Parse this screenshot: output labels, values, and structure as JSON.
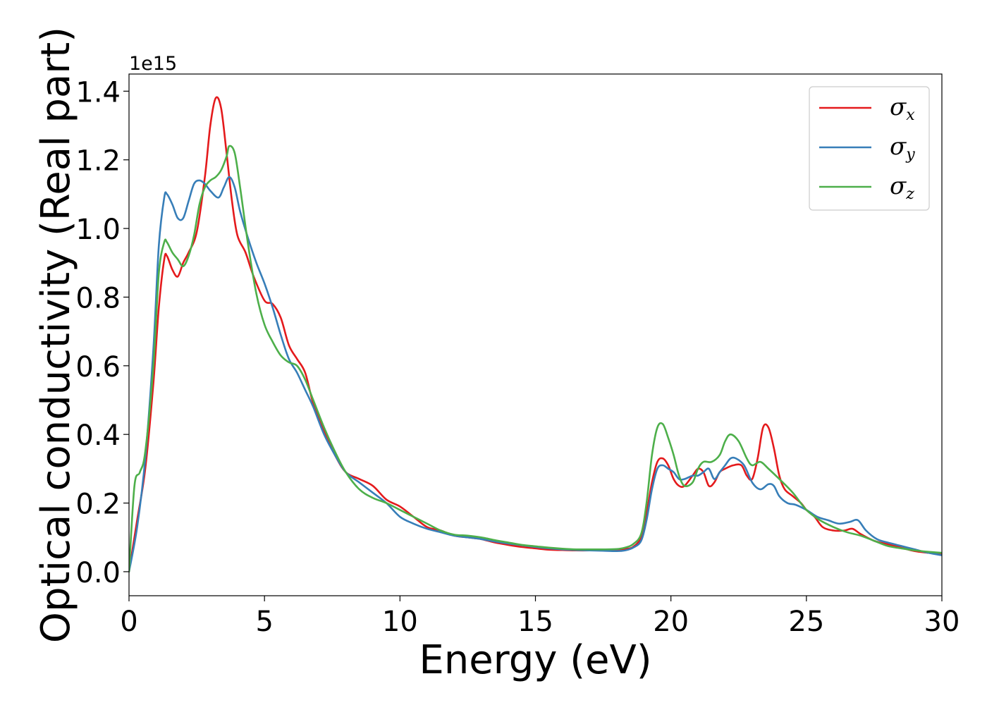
{
  "chart_data": {
    "type": "line",
    "title": "",
    "xlabel": "Energy (eV)",
    "ylabel": "Optical conductivity (Real part)",
    "y_offset_label": "1e15",
    "xlim": [
      0,
      30
    ],
    "ylim": [
      -0.07,
      1.45
    ],
    "x_ticks": [
      0,
      5,
      10,
      15,
      20,
      25,
      30
    ],
    "y_ticks": [
      0.0,
      0.2,
      0.4,
      0.6,
      0.8,
      1.0,
      1.2,
      1.4
    ],
    "x_tick_labels": [
      "0",
      "5",
      "10",
      "15",
      "20",
      "25",
      "30"
    ],
    "y_tick_labels": [
      "0.0",
      "0.2",
      "0.4",
      "0.6",
      "0.8",
      "1.0",
      "1.2",
      "1.4"
    ],
    "grid": false,
    "legend_position": "top-right",
    "series": [
      {
        "name": "σx",
        "legend_base": "σ",
        "legend_sub": "x",
        "color": "#e41a1c",
        "x": [
          0,
          0.3,
          0.6,
          0.9,
          1.1,
          1.3,
          1.4,
          1.6,
          1.8,
          2.0,
          2.2,
          2.5,
          2.8,
          3.0,
          3.2,
          3.4,
          3.6,
          3.8,
          4.0,
          4.3,
          4.6,
          5.0,
          5.3,
          5.6,
          5.9,
          6.2,
          6.5,
          6.8,
          7.2,
          7.6,
          8.0,
          8.5,
          9.0,
          9.5,
          10.0,
          10.5,
          11.0,
          11.5,
          12.0,
          12.5,
          13.0,
          13.5,
          14.0,
          14.5,
          15.0,
          15.5,
          16.0,
          16.5,
          17.0,
          17.5,
          18.0,
          18.3,
          18.6,
          18.9,
          19.1,
          19.3,
          19.5,
          19.7,
          19.9,
          20.1,
          20.3,
          20.5,
          20.8,
          21.0,
          21.2,
          21.4,
          21.6,
          21.8,
          22.0,
          22.3,
          22.6,
          22.8,
          23.0,
          23.2,
          23.4,
          23.6,
          23.8,
          24.0,
          24.2,
          24.5,
          24.8,
          25.0,
          25.3,
          25.6,
          26.0,
          26.4,
          26.7,
          27.0,
          27.5,
          28.0,
          28.5,
          29.0,
          29.5,
          30.0
        ],
        "y": [
          0.0,
          0.15,
          0.3,
          0.55,
          0.77,
          0.91,
          0.92,
          0.88,
          0.86,
          0.9,
          0.93,
          0.99,
          1.15,
          1.3,
          1.38,
          1.35,
          1.22,
          1.08,
          0.98,
          0.93,
          0.86,
          0.79,
          0.78,
          0.74,
          0.66,
          0.62,
          0.58,
          0.49,
          0.41,
          0.34,
          0.29,
          0.27,
          0.25,
          0.21,
          0.19,
          0.16,
          0.13,
          0.12,
          0.105,
          0.1,
          0.095,
          0.085,
          0.078,
          0.072,
          0.068,
          0.064,
          0.063,
          0.062,
          0.062,
          0.063,
          0.064,
          0.066,
          0.072,
          0.1,
          0.17,
          0.26,
          0.32,
          0.33,
          0.31,
          0.27,
          0.25,
          0.25,
          0.28,
          0.3,
          0.29,
          0.25,
          0.26,
          0.29,
          0.3,
          0.31,
          0.31,
          0.28,
          0.27,
          0.33,
          0.42,
          0.42,
          0.36,
          0.28,
          0.24,
          0.22,
          0.2,
          0.18,
          0.16,
          0.13,
          0.12,
          0.12,
          0.125,
          0.11,
          0.09,
          0.08,
          0.07,
          0.06,
          0.055,
          0.05
        ]
      },
      {
        "name": "σy",
        "legend_base": "σ",
        "legend_sub": "y",
        "color": "#377eb8",
        "x": [
          0,
          0.3,
          0.6,
          0.9,
          1.1,
          1.3,
          1.4,
          1.6,
          1.8,
          2.0,
          2.2,
          2.4,
          2.6,
          2.8,
          3.0,
          3.3,
          3.5,
          3.7,
          3.9,
          4.1,
          4.4,
          4.7,
          5.0,
          5.3,
          5.6,
          5.9,
          6.2,
          6.5,
          6.8,
          7.2,
          7.6,
          8.0,
          8.5,
          9.0,
          9.5,
          10.0,
          10.5,
          11.0,
          11.5,
          12.0,
          12.5,
          13.0,
          13.5,
          14.0,
          14.5,
          15.0,
          15.5,
          16.0,
          16.5,
          17.0,
          17.5,
          18.0,
          18.3,
          18.6,
          18.9,
          19.1,
          19.3,
          19.5,
          19.7,
          19.9,
          20.1,
          20.3,
          20.5,
          20.8,
          21.0,
          21.2,
          21.4,
          21.6,
          21.8,
          22.0,
          22.2,
          22.4,
          22.7,
          23.0,
          23.3,
          23.6,
          23.8,
          24.0,
          24.3,
          24.6,
          25.0,
          25.4,
          25.8,
          26.2,
          26.6,
          26.9,
          27.2,
          27.6,
          28.0,
          28.5,
          29.0,
          29.5,
          30.0
        ],
        "y": [
          0.0,
          0.13,
          0.33,
          0.65,
          0.95,
          1.09,
          1.1,
          1.07,
          1.03,
          1.03,
          1.08,
          1.13,
          1.14,
          1.13,
          1.11,
          1.09,
          1.12,
          1.15,
          1.12,
          1.05,
          0.97,
          0.9,
          0.84,
          0.77,
          0.69,
          0.62,
          0.58,
          0.53,
          0.48,
          0.4,
          0.34,
          0.29,
          0.26,
          0.23,
          0.2,
          0.16,
          0.14,
          0.125,
          0.115,
          0.105,
          0.1,
          0.095,
          0.088,
          0.082,
          0.077,
          0.072,
          0.068,
          0.065,
          0.063,
          0.062,
          0.061,
          0.06,
          0.062,
          0.07,
          0.09,
          0.15,
          0.24,
          0.3,
          0.31,
          0.3,
          0.29,
          0.27,
          0.27,
          0.28,
          0.28,
          0.29,
          0.3,
          0.27,
          0.29,
          0.31,
          0.33,
          0.33,
          0.31,
          0.26,
          0.24,
          0.255,
          0.25,
          0.22,
          0.2,
          0.195,
          0.18,
          0.16,
          0.15,
          0.14,
          0.145,
          0.15,
          0.12,
          0.095,
          0.085,
          0.075,
          0.065,
          0.055,
          0.048
        ]
      },
      {
        "name": "σz",
        "legend_base": "σ",
        "legend_sub": "z",
        "color": "#4daf4a",
        "x": [
          0,
          0.2,
          0.4,
          0.6,
          0.9,
          1.1,
          1.3,
          1.4,
          1.6,
          1.8,
          2.0,
          2.2,
          2.4,
          2.6,
          2.8,
          3.0,
          3.2,
          3.4,
          3.6,
          3.7,
          3.9,
          4.1,
          4.4,
          4.7,
          5.0,
          5.3,
          5.6,
          5.9,
          6.2,
          6.5,
          6.8,
          7.2,
          7.6,
          8.0,
          8.5,
          9.0,
          9.5,
          10.0,
          10.5,
          11.0,
          11.5,
          12.0,
          12.5,
          13.0,
          13.5,
          14.0,
          14.5,
          15.0,
          15.5,
          16.0,
          16.5,
          17.0,
          17.5,
          18.0,
          18.3,
          18.6,
          18.9,
          19.1,
          19.3,
          19.5,
          19.7,
          19.9,
          20.1,
          20.3,
          20.5,
          20.8,
          21.0,
          21.2,
          21.5,
          21.8,
          22.0,
          22.2,
          22.5,
          22.8,
          23.0,
          23.3,
          23.6,
          24.0,
          24.5,
          25.0,
          25.5,
          26.0,
          26.5,
          27.0,
          27.5,
          28.0,
          28.5,
          29.0,
          29.5,
          30.0
        ],
        "y": [
          0.0,
          0.25,
          0.29,
          0.35,
          0.6,
          0.87,
          0.96,
          0.96,
          0.93,
          0.91,
          0.89,
          0.92,
          0.98,
          1.07,
          1.12,
          1.14,
          1.15,
          1.17,
          1.21,
          1.24,
          1.22,
          1.12,
          0.95,
          0.81,
          0.72,
          0.67,
          0.63,
          0.61,
          0.6,
          0.56,
          0.5,
          0.42,
          0.35,
          0.29,
          0.24,
          0.215,
          0.2,
          0.18,
          0.16,
          0.14,
          0.12,
          0.108,
          0.105,
          0.1,
          0.092,
          0.085,
          0.078,
          0.074,
          0.07,
          0.067,
          0.065,
          0.065,
          0.065,
          0.066,
          0.07,
          0.08,
          0.11,
          0.2,
          0.34,
          0.42,
          0.43,
          0.39,
          0.34,
          0.28,
          0.25,
          0.26,
          0.3,
          0.32,
          0.32,
          0.34,
          0.38,
          0.4,
          0.38,
          0.33,
          0.31,
          0.32,
          0.3,
          0.27,
          0.23,
          0.18,
          0.15,
          0.13,
          0.115,
          0.105,
          0.09,
          0.075,
          0.068,
          0.062,
          0.058,
          0.055
        ]
      }
    ]
  }
}
